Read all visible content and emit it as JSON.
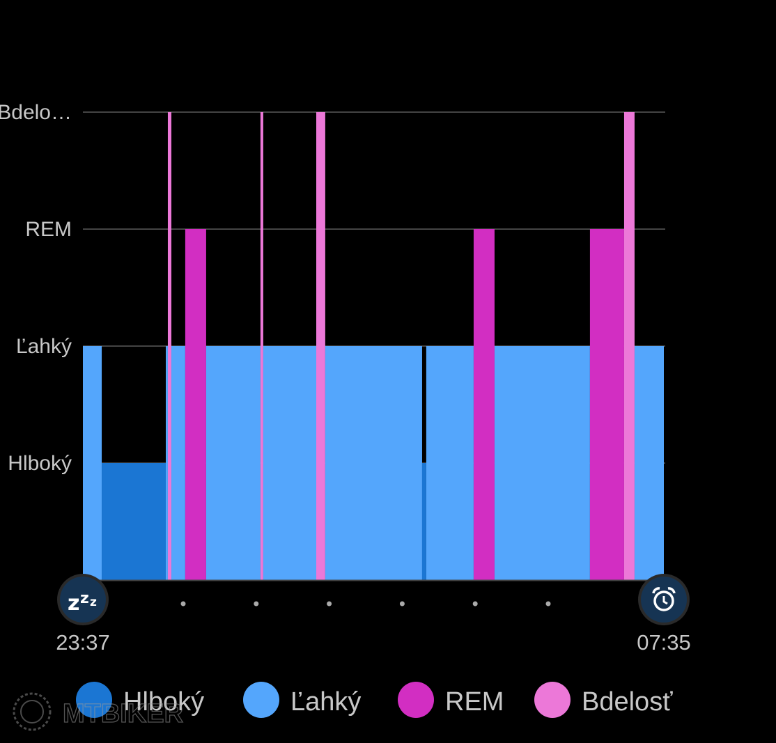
{
  "chart_data": {
    "type": "bar",
    "title": "",
    "xlabel": "",
    "ylabel": "",
    "time_unit": "minutes since start",
    "start_label": "23:37",
    "end_label": "07:35",
    "total_minutes": 478,
    "levels": [
      {
        "name": "Hlboký",
        "label": "Hlboký",
        "value": 1,
        "color": "#1b76d3"
      },
      {
        "name": "Ľahký",
        "label": "Ľahký",
        "value": 2,
        "color": "#54a6fc"
      },
      {
        "name": "REM",
        "label": "REM",
        "value": 3,
        "color": "#d22ec2"
      },
      {
        "name": "Bdelosť",
        "label": "Bdelo…",
        "value": 4,
        "color": "#ec78d8"
      }
    ],
    "ylim": [
      0,
      4
    ],
    "grid": true,
    "legend_placement": "bottom",
    "segments": [
      {
        "stage": "Ľahký",
        "start": 0,
        "end": 15.5
      },
      {
        "stage": "Hlboký",
        "start": 15.5,
        "end": 68.2
      },
      {
        "stage": "Ľahký",
        "start": 68.2,
        "end": 69.9
      },
      {
        "stage": "Bdelosť",
        "start": 69.9,
        "end": 72.8
      },
      {
        "stage": "Ľahký",
        "start": 72.8,
        "end": 84.2
      },
      {
        "stage": "REM",
        "start": 84.2,
        "end": 101.4
      },
      {
        "stage": "Ľahký",
        "start": 101.4,
        "end": 146.1
      },
      {
        "stage": "Bdelosť",
        "start": 146.1,
        "end": 148.4
      },
      {
        "stage": "Ľahký",
        "start": 148.4,
        "end": 192.0
      },
      {
        "stage": "Bdelosť",
        "start": 192.0,
        "end": 199.4
      },
      {
        "stage": "Ľahký",
        "start": 199.4,
        "end": 279.1
      },
      {
        "stage": "Hlboký",
        "start": 279.1,
        "end": 282.5
      },
      {
        "stage": "Ľahký",
        "start": 282.5,
        "end": 321.5
      },
      {
        "stage": "REM",
        "start": 321.5,
        "end": 338.7
      },
      {
        "stage": "Ľahký",
        "start": 338.7,
        "end": 417.2
      },
      {
        "stage": "REM",
        "start": 417.2,
        "end": 445.3
      },
      {
        "stage": "Bdelosť",
        "start": 445.3,
        "end": 453.9
      },
      {
        "stage": "Ľahký",
        "start": 453.9,
        "end": 478
      }
    ],
    "tick_dots": 6
  },
  "legend": [
    {
      "label": "Hlboký",
      "color": "#1b76d3"
    },
    {
      "label": "Ľahký",
      "color": "#54a6fc"
    },
    {
      "label": "REM",
      "color": "#d22ec2"
    },
    {
      "label": "Bdelosť",
      "color": "#ec78d8"
    }
  ],
  "icons": {
    "start": "sleep-zzz-icon",
    "end": "alarm-clock-icon"
  },
  "watermark": "MTBIKER"
}
